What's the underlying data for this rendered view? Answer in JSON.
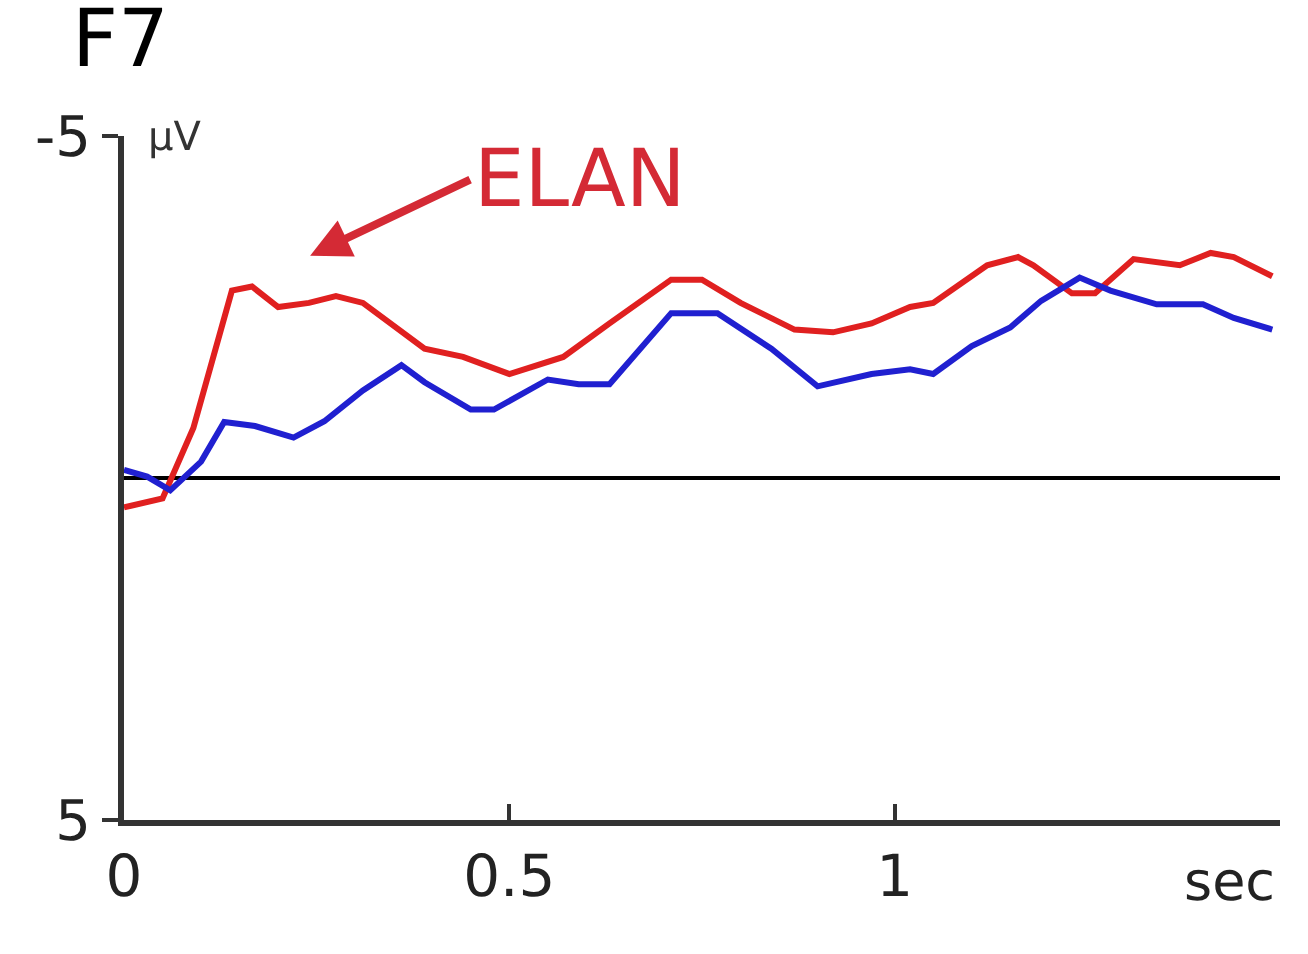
{
  "chart_data": {
    "type": "line",
    "title": "F7",
    "xlabel": "sec",
    "ylabel": "μV",
    "xlim": [
      0,
      1.5
    ],
    "ylim": [
      5,
      -5
    ],
    "xticks": [
      0,
      0.5,
      1
    ],
    "yticks": [
      -5,
      5
    ],
    "grid": false,
    "annotations": [
      "ELAN"
    ],
    "ref_lines": [
      {
        "axis": "y",
        "value": 0,
        "color": "#000000"
      }
    ],
    "series": [
      {
        "color": "#e02020",
        "x": [
          0,
          0.05,
          0.09,
          0.14,
          0.166,
          0.2,
          0.24,
          0.275,
          0.31,
          0.39,
          0.44,
          0.5,
          0.57,
          0.63,
          0.71,
          0.75,
          0.8,
          0.87,
          0.92,
          0.97,
          1.02,
          1.05,
          1.12,
          1.16,
          1.18,
          1.23,
          1.26,
          1.31,
          1.37,
          1.41,
          1.44,
          1.49
        ],
        "values": [
          0.43,
          0.3,
          -0.73,
          -2.74,
          -2.8,
          -2.5,
          -2.56,
          -2.66,
          -2.56,
          -1.89,
          -1.77,
          -1.52,
          -1.77,
          -2.26,
          -2.9,
          -2.9,
          -2.56,
          -2.17,
          -2.13,
          -2.26,
          -2.5,
          -2.56,
          -3.11,
          -3.23,
          -3.11,
          -2.7,
          -2.7,
          -3.2,
          -3.11,
          -3.29,
          -3.23,
          -2.95
        ]
      },
      {
        "color": "#2020d0",
        "x": [
          0,
          0.03,
          0.06,
          0.1,
          0.13,
          0.17,
          0.22,
          0.26,
          0.31,
          0.36,
          0.39,
          0.45,
          0.48,
          0.55,
          0.59,
          0.63,
          0.71,
          0.77,
          0.84,
          0.9,
          0.97,
          1.02,
          1.05,
          1.1,
          1.15,
          1.19,
          1.24,
          1.28,
          1.34,
          1.4,
          1.44,
          1.49
        ],
        "values": [
          -0.12,
          -0.02,
          0.18,
          -0.24,
          -0.82,
          -0.76,
          -0.59,
          -0.83,
          -1.28,
          -1.65,
          -1.4,
          -1.0,
          -1.0,
          -1.44,
          -1.37,
          -1.37,
          -2.41,
          -2.41,
          -1.89,
          -1.34,
          -1.52,
          -1.59,
          -1.52,
          -1.93,
          -2.2,
          -2.59,
          -2.93,
          -2.74,
          -2.54,
          -2.54,
          -2.34,
          -2.17
        ]
      }
    ]
  }
}
